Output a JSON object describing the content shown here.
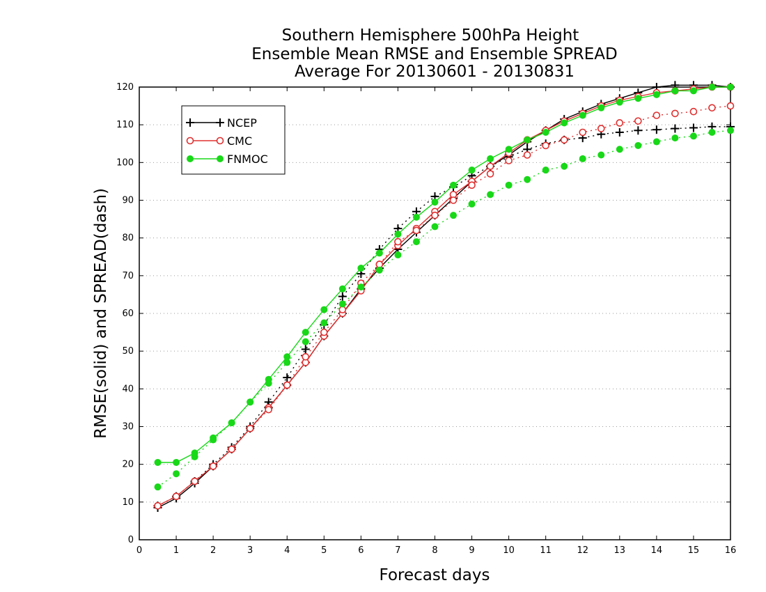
{
  "chart_data": {
    "type": "line",
    "title": [
      "Southern Hemisphere 500hPa Height",
      "Ensemble Mean RMSE and Ensemble SPREAD",
      "Average For 20130601 - 20130831"
    ],
    "xlabel": "Forecast days",
    "ylabel": "RMSE(solid) and SPREAD(dash)",
    "xlim": [
      0,
      16
    ],
    "ylim": [
      0,
      120
    ],
    "x_ticks": [
      0,
      1,
      2,
      3,
      4,
      5,
      6,
      7,
      8,
      9,
      10,
      11,
      12,
      13,
      14,
      15,
      16
    ],
    "y_ticks": [
      0,
      10,
      20,
      30,
      40,
      50,
      60,
      70,
      80,
      90,
      100,
      110,
      120
    ],
    "grid": "horizontal-dotted",
    "legend_position": "top-left",
    "x": [
      0.5,
      1,
      1.5,
      2,
      2.5,
      3,
      3.5,
      4,
      4.5,
      5,
      5.5,
      6,
      6.5,
      7,
      7.5,
      8,
      8.5,
      9,
      9.5,
      10,
      10.5,
      11,
      11.5,
      12,
      12.5,
      13,
      13.5,
      14,
      14.5,
      15,
      15.5,
      16
    ],
    "series": [
      {
        "name": "NCEP",
        "kind": "rmse",
        "color": "#000000",
        "marker": "plus",
        "values": [
          8.5,
          11,
          15,
          19.5,
          24,
          29.5,
          35,
          41,
          47,
          54,
          60,
          66.5,
          72,
          77,
          81.5,
          86,
          90.5,
          95,
          99,
          102,
          105.5,
          108.5,
          111.5,
          113.5,
          115.5,
          117,
          118.5,
          120,
          120.5,
          120.5,
          120.5,
          120
        ]
      },
      {
        "name": "NCEP",
        "kind": "spread",
        "color": "#000000",
        "marker": "plus",
        "values": [
          9,
          11.5,
          15.5,
          20,
          24.5,
          30,
          36.5,
          43,
          50.5,
          57,
          64.5,
          70.5,
          77,
          82.5,
          87,
          91,
          93.5,
          96.5,
          99,
          101.5,
          103.5,
          105,
          106,
          106.5,
          107.5,
          108,
          108.5,
          108.7,
          109,
          109.2,
          109.5,
          109.5
        ]
      },
      {
        "name": "CMC",
        "kind": "rmse",
        "color": "#e03030",
        "marker": "open-circle",
        "values": [
          9,
          11.5,
          15.5,
          19.5,
          24,
          29.5,
          35,
          41,
          47,
          54,
          60,
          66,
          73,
          78,
          82.5,
          87,
          91.5,
          95,
          99,
          102.5,
          106,
          108.5,
          111,
          113,
          115,
          116.5,
          117.5,
          118.5,
          119,
          119.5,
          120,
          120
        ]
      },
      {
        "name": "CMC",
        "kind": "spread",
        "color": "#e03030",
        "marker": "open-circle",
        "values": [
          9,
          11.5,
          15.5,
          19.5,
          24,
          29.5,
          34.5,
          41,
          48.5,
          55,
          61,
          68,
          73,
          79,
          82,
          86,
          90,
          94,
          97,
          100.5,
          102,
          104.5,
          106,
          108,
          109,
          110.5,
          111,
          112.5,
          113,
          113.5,
          114.5,
          115
        ]
      },
      {
        "name": "FNMOC",
        "kind": "rmse",
        "color": "#18d818",
        "marker": "filled-circle",
        "values": [
          20.5,
          20.5,
          23,
          27,
          31,
          36.5,
          42.5,
          48.5,
          55,
          61,
          66.5,
          72,
          76,
          81,
          85.5,
          89.5,
          94,
          98,
          101,
          103.5,
          106,
          108,
          110.5,
          112.5,
          114.5,
          116,
          117,
          118,
          119,
          119,
          120,
          120
        ]
      },
      {
        "name": "FNMOC",
        "kind": "spread",
        "color": "#18d818",
        "marker": "filled-circle",
        "values": [
          14,
          17.5,
          22,
          26.5,
          31,
          36.5,
          41.5,
          47,
          52.5,
          57.5,
          62.5,
          67,
          71.5,
          75.5,
          79,
          83,
          86,
          89,
          91.5,
          94,
          95.5,
          98,
          99,
          101,
          102,
          103.5,
          104.5,
          105.5,
          106.5,
          107,
          108,
          108.5
        ]
      }
    ],
    "legend": [
      {
        "name": "NCEP",
        "color": "#000000",
        "marker": "plus"
      },
      {
        "name": "CMC",
        "color": "#e03030",
        "marker": "open-circle"
      },
      {
        "name": "FNMOC",
        "color": "#18d818",
        "marker": "filled-circle"
      }
    ]
  }
}
